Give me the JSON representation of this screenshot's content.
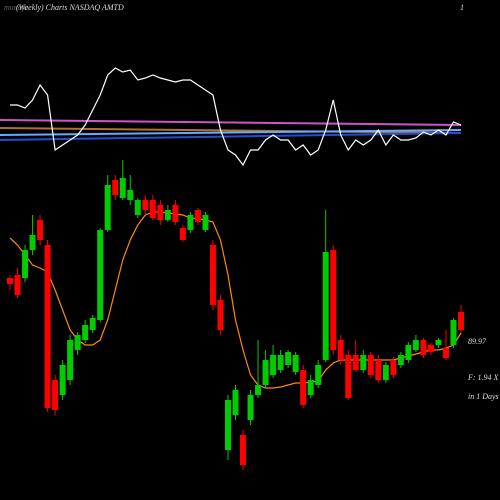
{
  "chart_data": {
    "type": "candlestick",
    "watermark": "munafa",
    "title": "(Weekly) Charts NASDAQ AMTD",
    "corner_label": "1",
    "price_label": "89.97",
    "info_label": "F: 1.94  X",
    "period_label": "in 1 Days",
    "ylim": [
      0,
      500
    ],
    "up_color": "#00cc00",
    "down_color": "#ff0000",
    "open": [
      222,
      225,
      222,
      250,
      280,
      255,
      120,
      105,
      120,
      150,
      160,
      170,
      180,
      270,
      320,
      302,
      300,
      285,
      300,
      300,
      295,
      280,
      295,
      272,
      270,
      290,
      270,
      255,
      200,
      50,
      85,
      65,
      80,
      105,
      115,
      125,
      130,
      135,
      128,
      130,
      105,
      115,
      140,
      250,
      160,
      145,
      145,
      130,
      145,
      140,
      120,
      140,
      135,
      140,
      150,
      160,
      155,
      155,
      152,
      155,
      188
    ],
    "close": [
      216,
      205,
      250,
      265,
      260,
      92,
      90,
      135,
      160,
      165,
      175,
      182,
      270,
      315,
      305,
      322,
      310,
      300,
      290,
      282,
      280,
      290,
      278,
      260,
      285,
      278,
      285,
      195,
      170,
      100,
      110,
      35,
      105,
      115,
      140,
      145,
      145,
      148,
      145,
      95,
      120,
      135,
      248,
      150,
      140,
      102,
      130,
      145,
      125,
      120,
      135,
      125,
      145,
      155,
      160,
      145,
      148,
      160,
      142,
      180,
      170
    ],
    "high": [
      225,
      232,
      255,
      285,
      285,
      260,
      125,
      140,
      165,
      168,
      180,
      185,
      272,
      325,
      325,
      340,
      325,
      302,
      305,
      305,
      300,
      295,
      300,
      275,
      288,
      292,
      288,
      260,
      205,
      105,
      115,
      70,
      110,
      160,
      150,
      155,
      150,
      150,
      148,
      135,
      125,
      140,
      290,
      255,
      165,
      150,
      160,
      150,
      148,
      145,
      138,
      143,
      148,
      158,
      165,
      162,
      157,
      162,
      170,
      182,
      195
    ],
    "low": [
      210,
      202,
      218,
      245,
      255,
      88,
      85,
      100,
      115,
      145,
      157,
      167,
      178,
      268,
      300,
      300,
      295,
      282,
      285,
      280,
      275,
      278,
      275,
      258,
      267,
      275,
      268,
      190,
      165,
      40,
      80,
      30,
      75,
      102,
      112,
      122,
      127,
      132,
      125,
      92,
      102,
      112,
      138,
      145,
      135,
      100,
      128,
      127,
      122,
      117,
      117,
      122,
      132,
      137,
      148,
      142,
      145,
      152,
      140,
      152,
      167
    ],
    "series": [
      {
        "name": "moving-average",
        "color": "#ff8c00",
        "values": [
          262,
          255,
          245,
          235,
          232,
          228,
          210,
          190,
          170,
          160,
          155,
          155,
          160,
          180,
          210,
          240,
          260,
          275,
          285,
          288,
          288,
          287,
          286,
          285,
          282,
          281,
          280,
          278,
          260,
          225,
          180,
          150,
          125,
          115,
          112,
          112,
          113,
          115,
          117,
          117,
          118,
          119,
          130,
          137,
          140,
          140,
          140,
          140,
          140,
          140,
          140,
          140,
          142,
          144,
          146,
          148,
          150,
          150,
          152,
          155,
          167
        ]
      },
      {
        "name": "indicator",
        "color": "#ffffff",
        "values": [
          395,
          395,
          392,
          400,
          415,
          405,
          350,
          355,
          360,
          365,
          375,
          390,
          405,
          425,
          432,
          428,
          430,
          420,
          422,
          425,
          422,
          420,
          418,
          420,
          420,
          415,
          410,
          405,
          370,
          350,
          345,
          335,
          350,
          350,
          360,
          365,
          360,
          360,
          350,
          355,
          345,
          350,
          370,
          400,
          365,
          350,
          360,
          355,
          360,
          370,
          355,
          365,
          360,
          360,
          362,
          368,
          365,
          370,
          365,
          378,
          375
        ]
      }
    ],
    "levels": [
      {
        "color": "#cc55cc",
        "values": [
          380,
          375
        ]
      },
      {
        "color": "#b07030",
        "values": [
          372,
          367
        ]
      },
      {
        "color": "#66aaff",
        "values": [
          365,
          370
        ]
      },
      {
        "color": "#1f4fd0",
        "values": [
          360,
          367
        ]
      }
    ]
  }
}
